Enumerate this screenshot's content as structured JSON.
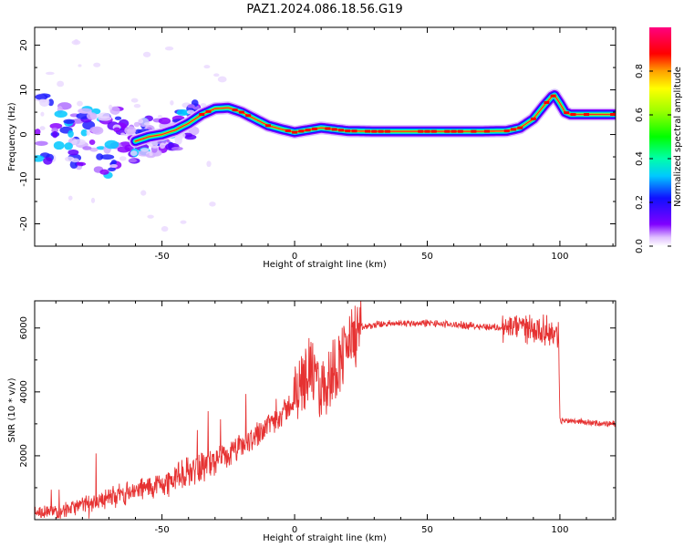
{
  "title": "PAZ1.2024.086.18.56.G19",
  "chart_data": [
    {
      "type": "heatmap",
      "panel": "spectrogram",
      "xlabel": "Height of straight line (km)",
      "ylabel": "Frequency (Hz)",
      "xlim": [
        -98,
        121
      ],
      "ylim": [
        -25,
        24
      ],
      "xticks": [
        "-50",
        "0",
        "50",
        "100"
      ],
      "xtick_values": [
        -50,
        0,
        50,
        100
      ],
      "yticks": [
        "20",
        "10",
        "0",
        "-10",
        "-20"
      ],
      "ytick_values": [
        20,
        10,
        0,
        -10,
        -20
      ],
      "ridge": {
        "x": [
          -97,
          -90,
          -80,
          -70,
          -60,
          -55,
          -50,
          -45,
          -40,
          -35,
          -30,
          -25,
          -20,
          -15,
          -10,
          -5,
          0,
          5,
          10,
          20,
          30,
          50,
          70,
          80,
          85,
          90,
          94,
          97,
          98,
          100,
          102,
          104,
          110,
          121
        ],
        "y": [
          1.0,
          0.5,
          -1.0,
          -2.0,
          -1.5,
          -0.5,
          0.0,
          1.0,
          2.5,
          4.5,
          5.8,
          6.0,
          5.0,
          3.5,
          2.0,
          1.2,
          0.5,
          1.0,
          1.5,
          0.8,
          0.7,
          0.7,
          0.7,
          0.8,
          1.5,
          3.5,
          6.5,
          8.5,
          8.8,
          7.0,
          5.0,
          4.5,
          4.5,
          4.5
        ]
      },
      "colorbar": {
        "label": "Normalized spectral amplitude",
        "ticks": [
          "0.0",
          "0.2",
          "0.4",
          "0.6",
          "0.8"
        ],
        "tick_values": [
          0.0,
          0.2,
          0.4,
          0.6,
          0.8
        ],
        "range": [
          0,
          1
        ],
        "colormap": "gist_ncar"
      }
    },
    {
      "type": "line",
      "panel": "snr",
      "xlabel": "Height of straight line (km)",
      "ylabel": "SNR (10 * v/v)",
      "xlim": [
        -98,
        121
      ],
      "ylim": [
        0,
        6850
      ],
      "xticks": [
        "-50",
        "0",
        "50",
        "100"
      ],
      "xtick_values": [
        -50,
        0,
        50,
        100
      ],
      "yticks": [
        "2000",
        "4000",
        "6000"
      ],
      "ytick_values": [
        2000,
        4000,
        6000
      ],
      "color": "#e63232",
      "series": [
        {
          "x": [
            -98,
            -90,
            -80,
            -70,
            -60,
            -50,
            -45,
            -40,
            -35,
            -30,
            -25,
            -20,
            -15,
            -10,
            -5,
            0,
            2,
            5,
            10,
            15,
            20,
            25,
            30,
            40,
            50,
            60,
            70,
            80,
            85,
            90,
            95,
            99.5,
            100,
            105,
            110,
            115,
            121
          ],
          "y": [
            200,
            250,
            450,
            700,
            900,
            1100,
            1300,
            1500,
            1700,
            1800,
            2000,
            2300,
            2600,
            3000,
            3300,
            3700,
            4200,
            4800,
            4000,
            4700,
            5500,
            6000,
            6100,
            6150,
            6150,
            6100,
            6050,
            6000,
            6050,
            6000,
            5900,
            5800,
            3100,
            3100,
            3050,
            3000,
            3000
          ]
        }
      ]
    }
  ]
}
